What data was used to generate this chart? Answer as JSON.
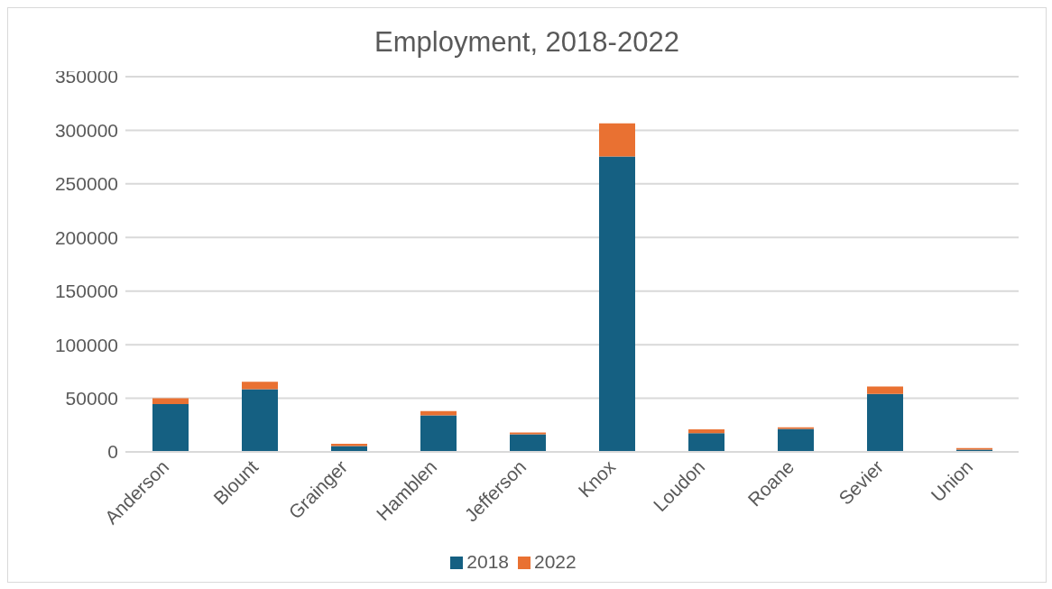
{
  "chart_data": {
    "type": "bar",
    "title": "Employment, 2018-2022",
    "stacked": true,
    "categories": [
      "Anderson",
      "Blount",
      "Grainger",
      "Hamblen",
      "Jefferson",
      "Knox",
      "Loudon",
      "Roane",
      "Sevier",
      "Union"
    ],
    "series": [
      {
        "name": "2018",
        "color": "#156082",
        "values": [
          44500,
          58500,
          5500,
          34000,
          16500,
          275500,
          17500,
          21500,
          54000,
          2000
        ]
      },
      {
        "name": "2022",
        "color": "#e97132",
        "values": [
          5500,
          7000,
          2000,
          4000,
          1500,
          31000,
          3500,
          1500,
          7000,
          1500
        ]
      }
    ],
    "ylim": [
      0,
      350000
    ],
    "yticks": [
      0,
      50000,
      100000,
      150000,
      200000,
      250000,
      300000,
      350000
    ],
    "grid": "y",
    "legend": "bottom"
  }
}
